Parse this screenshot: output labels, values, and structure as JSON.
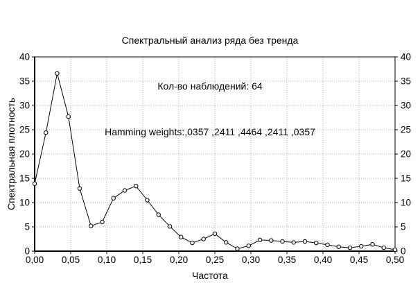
{
  "chart_data": {
    "type": "line",
    "title": "Спектральный анализ ряда без тренда",
    "subtitle1": "Кол-во наблюдений: 64",
    "subtitle2": "Hamming weights:,0357 ,2411 ,4464 ,2411 ,0357",
    "xlabel": "Частота",
    "ylabel": "Спектральная плотность",
    "xlim": [
      0,
      0.5
    ],
    "ylim": [
      0,
      40
    ],
    "grid": "dotted",
    "legend": "none",
    "marker": "open-circle",
    "right_axis_mirrors_left": true,
    "x_tick_labels": [
      "0,00",
      "0,05",
      "0,10",
      "0,15",
      "0,20",
      "0,25",
      "0,30",
      "0,35",
      "0,40",
      "0,45",
      "0,50"
    ],
    "x_tick_values": [
      0,
      0.05,
      0.1,
      0.15,
      0.2,
      0.25,
      0.3,
      0.35,
      0.4,
      0.45,
      0.5
    ],
    "y_tick_labels": [
      "0",
      "5",
      "10",
      "15",
      "20",
      "25",
      "30",
      "35",
      "40"
    ],
    "y_tick_values": [
      0,
      5,
      10,
      15,
      20,
      25,
      30,
      35,
      40
    ],
    "x": [
      0,
      0.015625,
      0.03125,
      0.046875,
      0.0625,
      0.078125,
      0.09375,
      0.109375,
      0.125,
      0.140625,
      0.15625,
      0.171875,
      0.1875,
      0.203125,
      0.21875,
      0.234375,
      0.25,
      0.265625,
      0.28125,
      0.296875,
      0.3125,
      0.328125,
      0.34375,
      0.359375,
      0.375,
      0.390625,
      0.40625,
      0.421875,
      0.4375,
      0.453125,
      0.46875,
      0.484375,
      0.5
    ],
    "y": [
      13.9,
      24.4,
      36.6,
      27.7,
      12.9,
      5.2,
      6.0,
      10.9,
      12.5,
      13.4,
      10.5,
      7.5,
      5.1,
      2.9,
      1.7,
      2.5,
      3.6,
      1.8,
      0.5,
      1.1,
      2.3,
      2.2,
      2.0,
      1.8,
      2.0,
      1.7,
      1.3,
      0.9,
      0.7,
      1.0,
      1.4,
      0.7,
      0.3
    ],
    "colors": {
      "line": "#000000",
      "marker_fill": "#ffffff",
      "grid": "#aaaaaa",
      "axis": "#000000",
      "text": "#000000",
      "background": "#ffffff"
    }
  }
}
